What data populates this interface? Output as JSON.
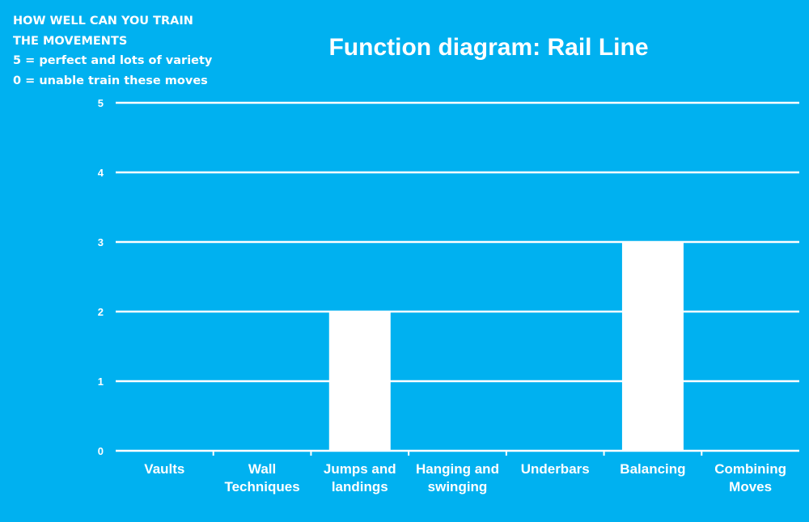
{
  "note": {
    "lines": [
      "HOW WELL CAN YOU TRAIN",
      "THE MOVEMENTS",
      "5 = perfect and lots of variety",
      "0 = unable train these moves"
    ]
  },
  "chart_data": {
    "type": "bar",
    "title": "Function diagram: Rail Line",
    "categories": [
      [
        "Vaults"
      ],
      [
        "Wall",
        "Techniques"
      ],
      [
        "Jumps and",
        "landings"
      ],
      [
        "Hanging and",
        "swinging"
      ],
      [
        "Underbars"
      ],
      [
        "Balancing"
      ],
      [
        "Combining",
        "Moves"
      ]
    ],
    "values": [
      0,
      0,
      2,
      0,
      0,
      3,
      0
    ],
    "ylim": [
      0,
      5
    ],
    "yticks": [
      "0",
      "1",
      "2",
      "3",
      "4",
      "5"
    ],
    "grid": true,
    "legend": "none",
    "colors": {
      "background": "#00b1f0",
      "bars": "#ffffff",
      "grid": "#ffffff",
      "text": "#ffffff"
    }
  }
}
